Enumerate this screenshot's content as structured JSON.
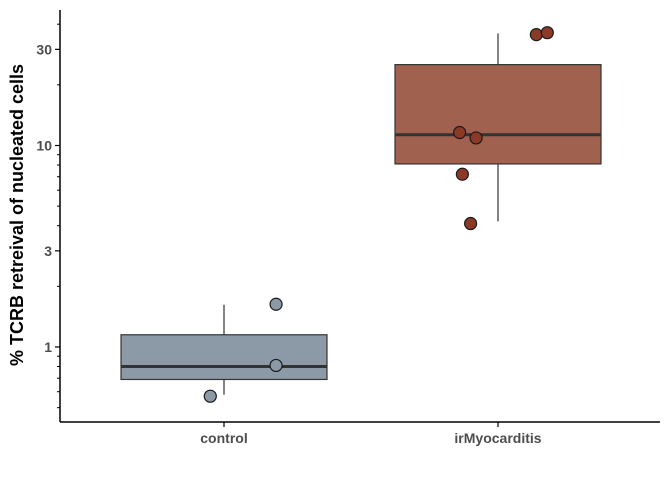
{
  "chart_data": {
    "type": "boxplot",
    "title": "",
    "xlabel": "",
    "ylabel": "% TCRB retreival of nucleated cells",
    "y_scale": "log10",
    "ylim": [
      0.43,
      45
    ],
    "yticks": [
      1,
      3,
      10,
      30
    ],
    "ytick_labels": [
      "1",
      "3",
      "10",
      "30"
    ],
    "grid": false,
    "legend": "none",
    "categories": [
      "control",
      "irMyocarditis"
    ],
    "groups": [
      {
        "name": "control",
        "color": "#8c9aa8",
        "box": {
          "whisker_low": 0.58,
          "q1": 0.69,
          "median": 0.8,
          "q3": 1.15,
          "whisker_high": 1.62
        },
        "points": [
          {
            "x_offset": -0.05,
            "y": 0.57
          },
          {
            "x_offset": 0.19,
            "y": 1.63
          },
          {
            "x_offset": 0.19,
            "y": 0.81
          }
        ]
      },
      {
        "name": "irMyocarditis",
        "color": "#a0614f",
        "point_color": "#8b3a28",
        "box": {
          "whisker_low": 4.2,
          "q1": 8.1,
          "median": 11.3,
          "q3": 25.2,
          "whisker_high": 36.0
        },
        "points": [
          {
            "x_offset": 0.14,
            "y": 35.5
          },
          {
            "x_offset": 0.18,
            "y": 36.3
          },
          {
            "x_offset": -0.14,
            "y": 11.6
          },
          {
            "x_offset": -0.08,
            "y": 10.9
          },
          {
            "x_offset": -0.13,
            "y": 7.2
          },
          {
            "x_offset": -0.1,
            "y": 4.1
          }
        ]
      }
    ]
  }
}
